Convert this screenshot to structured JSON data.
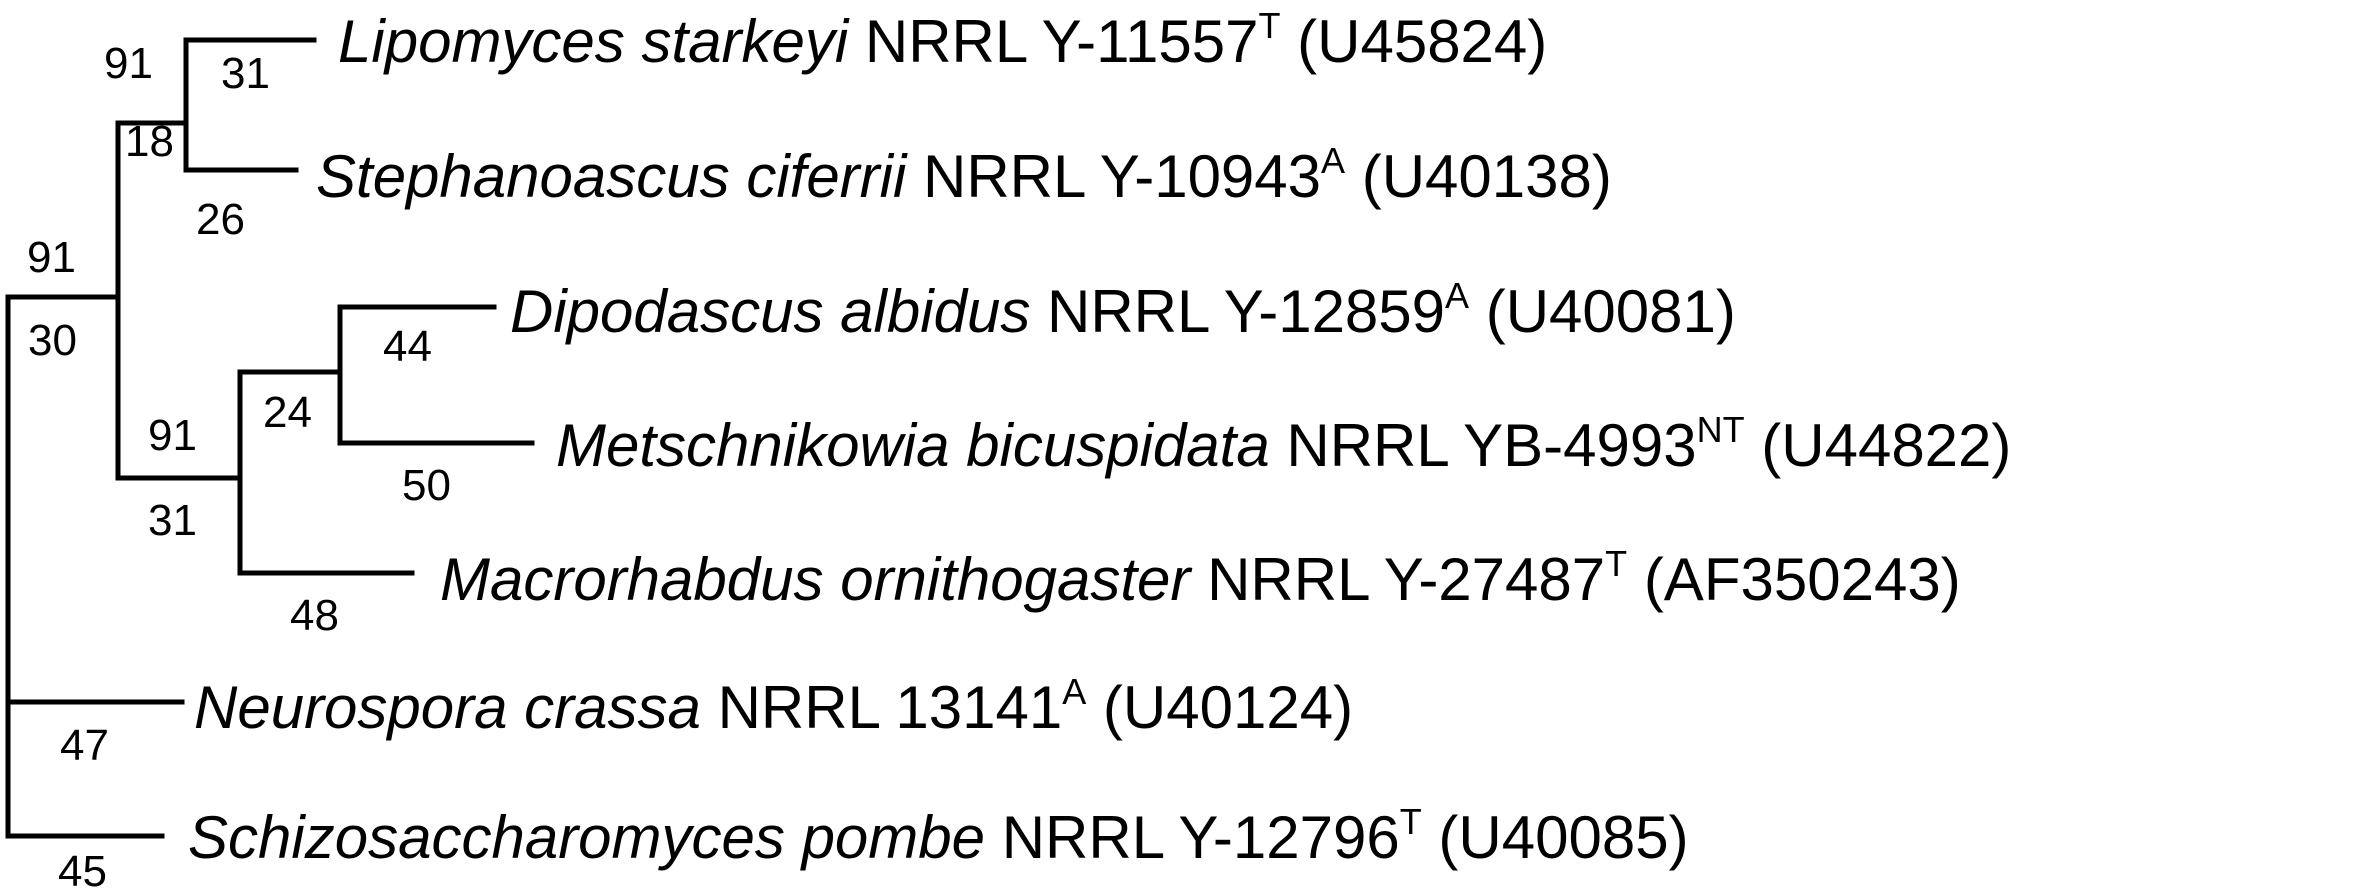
{
  "tree": {
    "taxa": [
      {
        "genus_species": "Lipomyces starkeyi",
        "strain": " NRRL Y-11557",
        "superscript": "T",
        "accession": " (U45824)"
      },
      {
        "genus_species": "Stephanoascus ciferrii",
        "strain": " NRRL Y-10943",
        "superscript": "A",
        "accession": " (U40138)"
      },
      {
        "genus_species": "Dipodascus albidus",
        "strain": " NRRL Y-12859",
        "superscript": "A",
        "accession": " (U40081)"
      },
      {
        "genus_species": "Metschnikowia bicuspidata",
        "strain": " NRRL YB-4993",
        "superscript": "NT",
        "accession": " (U44822)"
      },
      {
        "genus_species": "Macrorhabdus ornithogaster",
        "strain": " NRRL Y-27487",
        "superscript": "T",
        "accession": " (AF350243)"
      },
      {
        "genus_species": "Neurospora crassa",
        "strain": " NRRL 13141",
        "superscript": "A",
        "accession": " (U40124)"
      },
      {
        "genus_species": "Schizosaccharomyces pombe",
        "strain": " NRRL Y-12796",
        "superscript": "T",
        "accession": " (U40085)"
      }
    ],
    "labels": {
      "lipomyces_branch": "31",
      "stephanoascus_branch": "26",
      "dipodascus_branch": "44",
      "metschnikowia_branch": "50",
      "macrorhabdus_branch": "48",
      "neurospora_branch": "47",
      "schizo_branch": "45",
      "clade_lip_steph_support": "91",
      "clade_lip_steph_branch": "18",
      "clade_dip_met_branch": "24",
      "clade_dip_met_mac_support": "91",
      "clade_dip_met_mac_branch": "31",
      "clade_inner_support": "91",
      "clade_inner_branch": "30"
    }
  }
}
